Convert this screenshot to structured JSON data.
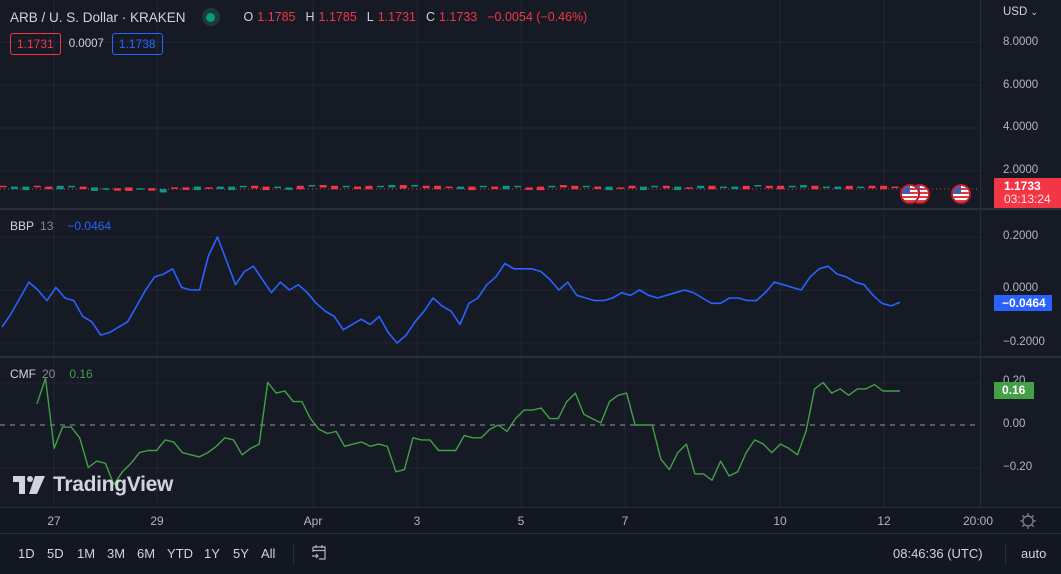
{
  "header": {
    "symbol": "ARB / U. S. Dollar · KRAKEN",
    "ohlc": {
      "o_label": "O",
      "o": "1.1785",
      "h_label": "H",
      "h": "1.1785",
      "l_label": "L",
      "l": "1.1731",
      "c_label": "C",
      "c": "1.1733",
      "change": "−0.0054 (−0.46%)"
    },
    "bid": "1.1731",
    "spread": "0.0007",
    "ask": "1.1738"
  },
  "price_axis": {
    "currency": "USD",
    "ticks": [
      "8.0000",
      "6.0000",
      "4.0000",
      "2.0000"
    ],
    "last_price": "1.1733",
    "countdown": "03:13:24"
  },
  "indicators": {
    "bbp": {
      "name": "BBP",
      "param": "13",
      "value": "−0.0464",
      "ticks": [
        "0.2000",
        "0.0000",
        "−0.2000"
      ],
      "tag": "−0.0464",
      "color": "#2962ff"
    },
    "cmf": {
      "name": "CMF",
      "param": "20",
      "value": "0.16",
      "ticks": [
        "0.20",
        "0.00",
        "−0.20"
      ],
      "tag": "0.16",
      "color": "#43a047"
    }
  },
  "time_axis": {
    "labels": [
      "27",
      "29",
      "Apr",
      "3",
      "5",
      "7",
      "10",
      "12",
      "20:00"
    ]
  },
  "bottom_bar": {
    "ranges": [
      "1D",
      "5D",
      "1M",
      "3M",
      "6M",
      "YTD",
      "1Y",
      "5Y",
      "All"
    ],
    "clock": "08:46:36 (UTC)",
    "scale_mode": "auto"
  },
  "branding": {
    "logo_text": "TradingView"
  },
  "colors": {
    "up": "#089981",
    "down": "#f23645",
    "bbp_line": "#2962ff",
    "cmf_line": "#43a047",
    "background": "#161a25"
  },
  "chart_data": [
    {
      "type": "candlestick",
      "title": "ARB / U. S. Dollar · KRAKEN",
      "ylabel": "USD",
      "ylim": [
        0,
        9
      ],
      "y_ticks": [
        2,
        4,
        6,
        8
      ],
      "last": 1.1733,
      "ohlc_last": {
        "open": 1.1785,
        "high": 1.1785,
        "low": 1.1731,
        "close": 1.1733
      },
      "x_ticks": [
        "27",
        "29",
        "Apr",
        "3",
        "5",
        "7",
        "10",
        "12",
        "20:00"
      ],
      "note": "Price compressed near 1.1–1.3 across the visible range on an 8.0 scale"
    },
    {
      "type": "line",
      "title": "BBP 13",
      "series": [
        {
          "name": "BBP",
          "values": [
            -0.14,
            -0.09,
            -0.03,
            0.03,
            0.0,
            -0.04,
            0.01,
            -0.03,
            -0.04,
            -0.1,
            -0.12,
            -0.17,
            -0.16,
            -0.14,
            -0.12,
            -0.06,
            0.0,
            0.05,
            0.06,
            0.08,
            0.01,
            0.0,
            0.0,
            0.13,
            0.2,
            0.11,
            0.02,
            0.07,
            0.09,
            0.04,
            -0.01,
            0.03,
            0.0,
            0.02,
            -0.01,
            -0.05,
            -0.08,
            -0.1,
            -0.15,
            -0.13,
            -0.11,
            -0.13,
            -0.1,
            -0.16,
            -0.2,
            -0.17,
            -0.12,
            -0.08,
            -0.03,
            -0.06,
            -0.08,
            -0.13,
            -0.05,
            -0.03,
            0.02,
            0.05,
            0.1,
            0.08,
            0.08,
            0.08,
            0.07,
            0.04,
            0.0,
            0.03,
            -0.02,
            -0.03,
            -0.04,
            -0.04,
            -0.03,
            -0.01,
            -0.02,
            0.0,
            -0.02,
            -0.03,
            -0.02,
            -0.01,
            0.0,
            -0.01,
            -0.03,
            -0.05,
            -0.05,
            -0.03,
            -0.03,
            -0.04,
            -0.04,
            -0.01,
            0.03,
            0.02,
            0.01,
            0.0,
            0.05,
            0.08,
            0.09,
            0.06,
            0.05,
            0.03,
            0.02,
            -0.02,
            -0.05,
            -0.06,
            -0.0464
          ]
        }
      ],
      "ylim": [
        -0.25,
        0.28
      ],
      "y_ticks": [
        0.2,
        0.0,
        -0.2
      ],
      "last": -0.0464
    },
    {
      "type": "line",
      "title": "CMF 20",
      "series": [
        {
          "name": "CMF",
          "values": [
            0.1,
            0.22,
            -0.11,
            -0.01,
            -0.01,
            -0.06,
            -0.2,
            -0.17,
            -0.18,
            -0.28,
            -0.22,
            -0.18,
            -0.13,
            -0.12,
            -0.12,
            -0.07,
            -0.08,
            -0.13,
            -0.14,
            -0.15,
            -0.13,
            -0.1,
            -0.06,
            -0.07,
            -0.14,
            -0.11,
            -0.09,
            0.2,
            0.15,
            0.16,
            0.11,
            0.11,
            0.03,
            -0.02,
            -0.04,
            -0.03,
            -0.1,
            -0.09,
            -0.08,
            -0.1,
            -0.09,
            -0.1,
            -0.22,
            -0.21,
            -0.06,
            -0.07,
            -0.07,
            -0.12,
            -0.12,
            -0.12,
            -0.05,
            -0.06,
            -0.06,
            -0.02,
            0.0,
            -0.03,
            0.03,
            0.07,
            0.07,
            0.08,
            0.03,
            0.03,
            0.11,
            0.15,
            0.05,
            0.03,
            0.01,
            0.11,
            0.14,
            0.15,
            0.0,
            0.0,
            0.0,
            -0.16,
            -0.21,
            -0.13,
            -0.09,
            -0.23,
            -0.23,
            -0.26,
            -0.17,
            -0.24,
            -0.22,
            -0.13,
            -0.07,
            -0.09,
            -0.13,
            -0.09,
            -0.11,
            -0.14,
            -0.03,
            0.17,
            0.2,
            0.15,
            0.17,
            0.14,
            0.17,
            0.17,
            0.19,
            0.16,
            0.16,
            0.16
          ]
        }
      ],
      "ylim": [
        -0.33,
        0.28
      ],
      "y_ticks": [
        0.2,
        0.0,
        -0.2
      ],
      "reference_line": 0.0,
      "last": 0.16
    }
  ]
}
